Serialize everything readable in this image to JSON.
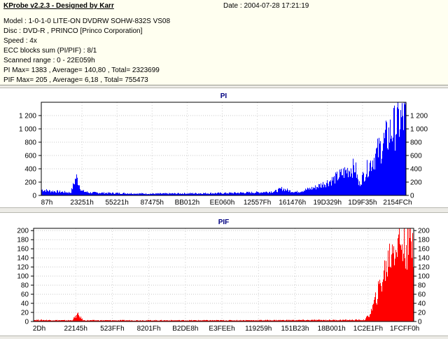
{
  "header": {
    "app_title": "KProbe v2.2.3 - Designed by Karr",
    "date_line": "Date : 2004-07-28 17:21:19",
    "lines": [
      "Model : 1-0-1-0 LITE-ON DVDRW SOHW-832S  VS08",
      "Disc : DVD-R , PRINCO [Princo Corporation]",
      "Speed : 4x",
      "ECC blocks sum (PI/PIF) : 8/1",
      "Scanned range : 0 - 22E059h",
      "PI Max= 1383 , Average= 140,80 , Total= 2323699",
      "PIF Max= 205 , Average= 6,18 , Total= 755473"
    ]
  },
  "chart_data": [
    {
      "type": "bar",
      "title": "PI",
      "color": "#0000ff",
      "ylim": [
        0,
        1400
      ],
      "y_ticks": [
        0,
        200,
        400,
        600,
        800,
        1000,
        1200
      ],
      "y_tick_labels": [
        "0",
        "200",
        "400",
        "600",
        "800",
        "1 000",
        "1 200"
      ],
      "x_tick_labels": [
        "87h",
        "23251h",
        "55221h",
        "87475h",
        "BB012h",
        "EE060h",
        "12557Fh",
        "161476h",
        "19D329h",
        "1D9F35h",
        "2154FCh"
      ],
      "x_range_hex": [
        "0",
        "22E059"
      ],
      "profile_x_fraction": [
        0,
        0.02,
        0.08,
        0.095,
        0.11,
        0.13,
        0.2,
        0.3,
        0.4,
        0.5,
        0.6,
        0.64,
        0.66,
        0.68,
        0.7,
        0.75,
        0.8,
        0.84,
        0.86,
        0.87,
        0.875,
        0.9,
        0.93,
        0.96,
        0.98,
        1.0
      ],
      "profile_values": [
        100,
        80,
        50,
        330,
        80,
        50,
        40,
        30,
        35,
        40,
        55,
        70,
        120,
        80,
        60,
        140,
        280,
        450,
        500,
        180,
        260,
        550,
        850,
        1150,
        1300,
        1383
      ],
      "grid": true
    },
    {
      "type": "bar",
      "title": "PIF",
      "color": "#ff0000",
      "ylim": [
        0,
        205
      ],
      "y_ticks": [
        0,
        20,
        40,
        60,
        80,
        100,
        120,
        140,
        160,
        180,
        200
      ],
      "y_tick_labels": [
        "0",
        "20",
        "40",
        "60",
        "80",
        "100",
        "120",
        "140",
        "160",
        "180",
        "200"
      ],
      "x_tick_labels": [
        "2Dh",
        "22145h",
        "523FFh",
        "8201Fh",
        "B2DE8h",
        "E3FEEh",
        "119259h",
        "151B23h",
        "18B001h",
        "1C2E1Fh",
        "1FCFF0h"
      ],
      "x_range_hex": [
        "0",
        "22E059"
      ],
      "profile_x_fraction": [
        0,
        0.08,
        0.1,
        0.115,
        0.13,
        0.5,
        0.87,
        0.885,
        0.9,
        0.93,
        0.945,
        0.96,
        1.0
      ],
      "profile_values": [
        4,
        3,
        3,
        18,
        3,
        3,
        4,
        20,
        60,
        150,
        200,
        205,
        205
      ],
      "grid": true
    }
  ]
}
